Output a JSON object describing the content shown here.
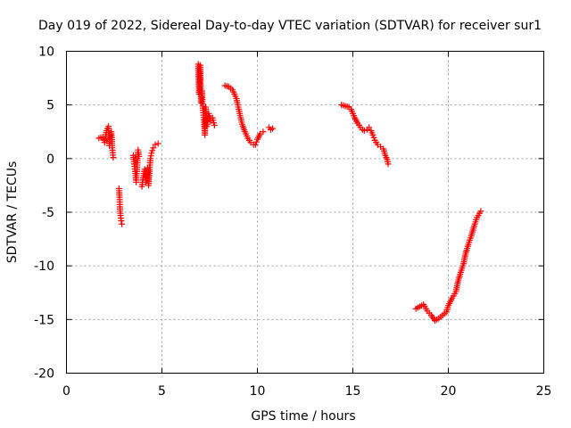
{
  "chart_data": {
    "type": "scatter",
    "title": "Day 019 of 2022, Sidereal Day-to-day VTEC variation (SDTVAR) for receiver sur1",
    "xlabel": "GPS time / hours",
    "ylabel": "SDTVAR / TECUs",
    "xlim": [
      0,
      25
    ],
    "ylim": [
      -20,
      10
    ],
    "xticks": [
      0,
      5,
      10,
      15,
      20,
      25
    ],
    "yticks": [
      -20,
      -15,
      -10,
      -5,
      0,
      5,
      10
    ],
    "grid": true,
    "marker": "+",
    "marker_color": "#ff0000",
    "segments": [
      [
        [
          1.7,
          1.9
        ],
        [
          1.9,
          2.0
        ],
        [
          2.0,
          1.5
        ],
        [
          2.1,
          2.6
        ],
        [
          2.2,
          3.0
        ],
        [
          2.25,
          1.2
        ],
        [
          2.3,
          2.2
        ],
        [
          2.35,
          2.5
        ],
        [
          2.4,
          1.0
        ],
        [
          2.45,
          0.1
        ]
      ],
      [
        [
          2.75,
          -2.8
        ],
        [
          2.78,
          -3.6
        ],
        [
          2.8,
          -4.5
        ],
        [
          2.83,
          -5.3
        ],
        [
          2.87,
          -5.8
        ],
        [
          2.9,
          -6.1
        ]
      ],
      [
        [
          3.5,
          0.3
        ],
        [
          3.55,
          -0.5
        ],
        [
          3.6,
          -1.2
        ],
        [
          3.65,
          -2.2
        ],
        [
          3.7,
          -0.8
        ],
        [
          3.75,
          0.8
        ],
        [
          3.8,
          0.2
        ]
      ],
      [
        [
          3.95,
          -2.6
        ],
        [
          4.0,
          -2.0
        ],
        [
          4.05,
          -1.4
        ],
        [
          4.1,
          -1.0
        ],
        [
          4.15,
          -2.2
        ],
        [
          4.2,
          -1.5
        ],
        [
          4.25,
          -0.9
        ],
        [
          4.3,
          -2.5
        ],
        [
          4.35,
          -1.0
        ],
        [
          4.4,
          0.0
        ],
        [
          4.45,
          0.5
        ],
        [
          4.55,
          1.0
        ],
        [
          4.65,
          1.3
        ],
        [
          4.8,
          1.4
        ]
      ],
      [
        [
          6.9,
          8.8
        ],
        [
          6.95,
          6.0
        ],
        [
          7.0,
          8.7
        ],
        [
          7.05,
          5.2
        ],
        [
          7.1,
          6.3
        ],
        [
          7.15,
          4.5
        ],
        [
          7.2,
          3.6
        ],
        [
          7.25,
          2.2
        ],
        [
          7.3,
          4.8
        ],
        [
          7.35,
          3.0
        ],
        [
          7.45,
          4.2
        ],
        [
          7.55,
          3.5
        ],
        [
          7.65,
          3.8
        ],
        [
          7.75,
          3.1
        ]
      ],
      [
        [
          8.3,
          6.8
        ],
        [
          8.5,
          6.7
        ],
        [
          8.7,
          6.4
        ],
        [
          8.9,
          5.6
        ],
        [
          9.0,
          4.8
        ],
        [
          9.1,
          4.0
        ],
        [
          9.2,
          3.2
        ],
        [
          9.35,
          2.5
        ],
        [
          9.5,
          1.9
        ],
        [
          9.65,
          1.5
        ],
        [
          9.8,
          1.3
        ],
        [
          9.9,
          1.3
        ],
        [
          10.0,
          1.8
        ],
        [
          10.15,
          2.3
        ],
        [
          10.3,
          2.5
        ]
      ],
      [
        [
          10.6,
          2.9
        ],
        [
          10.7,
          2.7
        ],
        [
          10.8,
          2.8
        ]
      ],
      [
        [
          14.4,
          5.0
        ],
        [
          14.6,
          4.9
        ],
        [
          14.8,
          4.8
        ],
        [
          14.9,
          4.6
        ],
        [
          15.0,
          4.2
        ],
        [
          15.1,
          3.8
        ],
        [
          15.25,
          3.3
        ],
        [
          15.4,
          2.9
        ],
        [
          15.5,
          2.7
        ],
        [
          15.6,
          2.6
        ],
        [
          15.75,
          2.7
        ],
        [
          15.85,
          2.9
        ],
        [
          15.95,
          2.6
        ],
        [
          16.05,
          2.2
        ],
        [
          16.15,
          1.7
        ],
        [
          16.3,
          1.3
        ],
        [
          16.45,
          1.1
        ],
        [
          16.6,
          0.9
        ],
        [
          16.7,
          0.3
        ],
        [
          16.8,
          -0.1
        ],
        [
          16.85,
          -0.5
        ]
      ],
      [
        [
          18.3,
          -14.0
        ],
        [
          18.5,
          -13.8
        ],
        [
          18.7,
          -13.6
        ],
        [
          18.9,
          -14.2
        ],
        [
          19.1,
          -14.6
        ],
        [
          19.3,
          -15.1
        ],
        [
          19.5,
          -14.9
        ],
        [
          19.7,
          -14.6
        ],
        [
          19.9,
          -14.3
        ],
        [
          20.0,
          -13.7
        ],
        [
          20.2,
          -13.0
        ],
        [
          20.4,
          -12.4
        ],
        [
          20.5,
          -11.5
        ],
        [
          20.65,
          -10.6
        ],
        [
          20.8,
          -9.8
        ],
        [
          20.9,
          -8.9
        ],
        [
          21.05,
          -8.0
        ],
        [
          21.2,
          -7.2
        ],
        [
          21.35,
          -6.3
        ],
        [
          21.5,
          -5.5
        ],
        [
          21.7,
          -4.9
        ]
      ]
    ]
  }
}
